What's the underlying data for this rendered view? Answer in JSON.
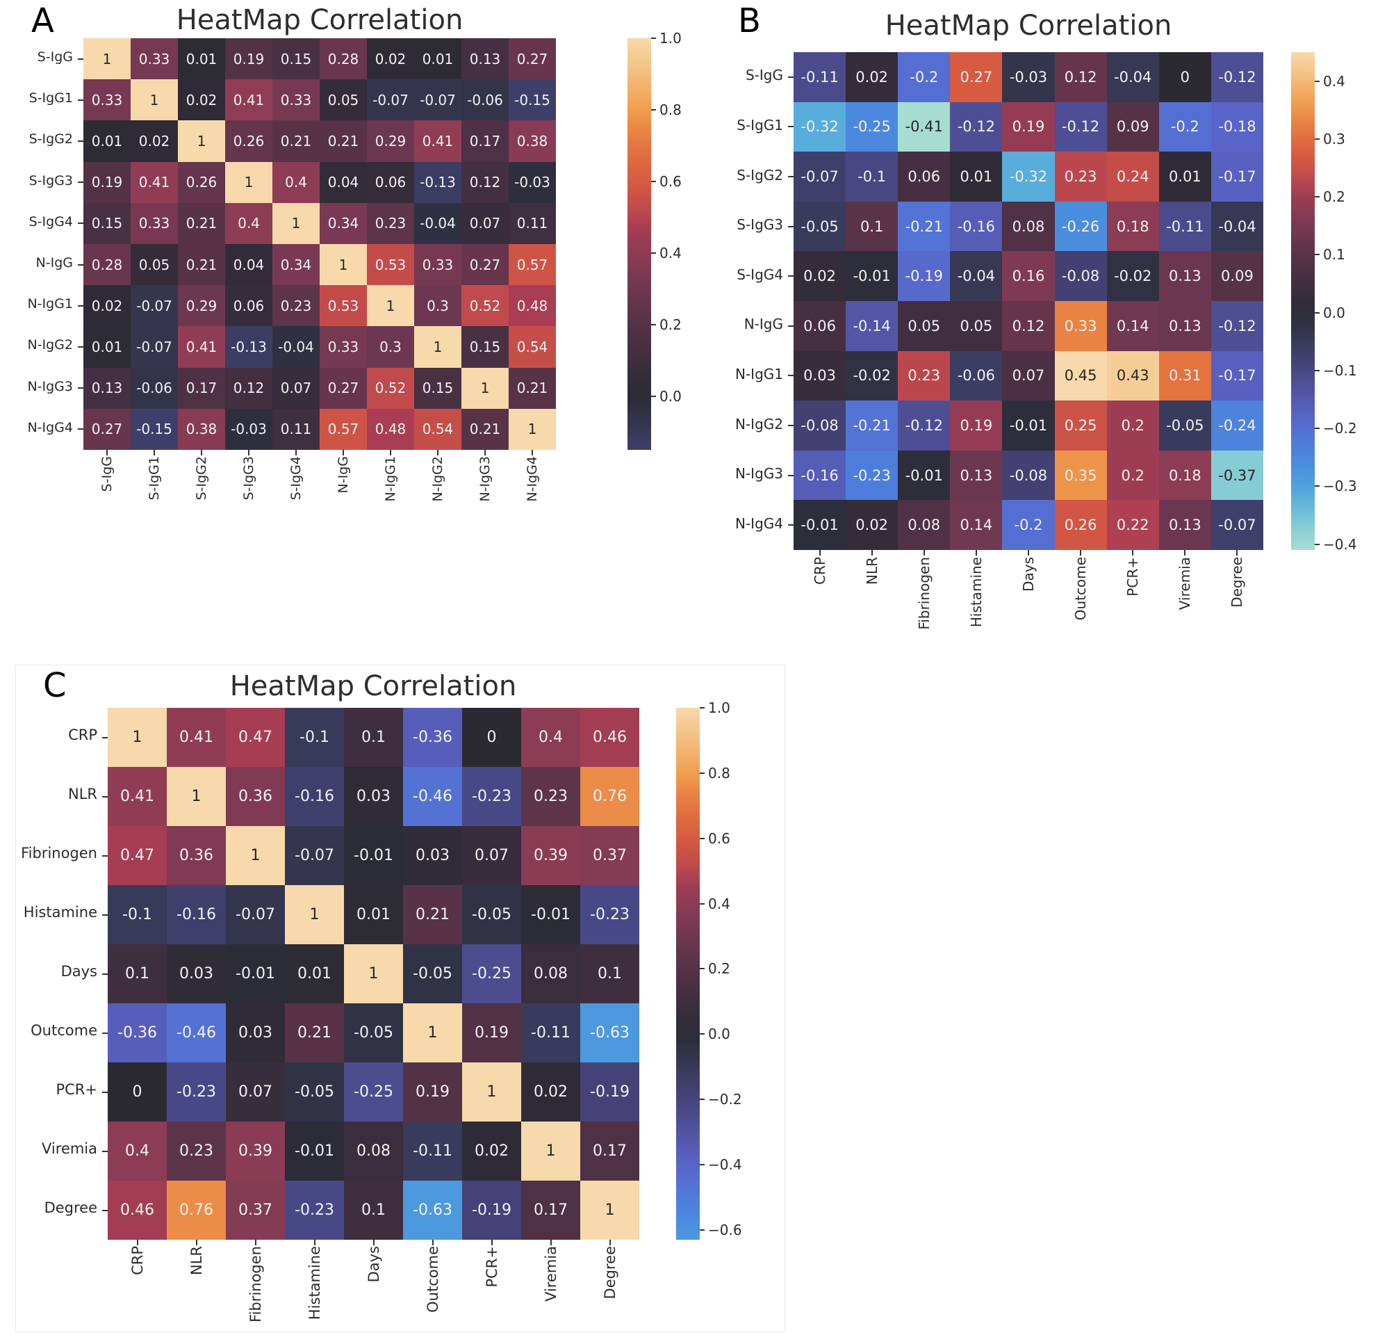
{
  "chart_data": [
    {
      "type": "heatmap",
      "panel": "A",
      "title": "HeatMap Correlation",
      "rows": [
        "S-IgG",
        "S-IgG1",
        "S-IgG2",
        "S-IgG3",
        "S-IgG4",
        "N-IgG",
        "N-IgG1",
        "N-IgG2",
        "N-IgG3",
        "N-IgG4"
      ],
      "cols": [
        "S-IgG",
        "S-IgG1",
        "S-IgG2",
        "S-IgG3",
        "S-IgG4",
        "N-IgG",
        "N-IgG1",
        "N-IgG2",
        "N-IgG3",
        "N-IgG4"
      ],
      "values": [
        [
          1,
          0.33,
          0.01,
          0.19,
          0.15,
          0.28,
          0.02,
          0.01,
          0.13,
          0.27
        ],
        [
          0.33,
          1,
          0.02,
          0.41,
          0.33,
          0.05,
          -0.07,
          -0.07,
          -0.06,
          -0.15
        ],
        [
          0.01,
          0.02,
          1,
          0.26,
          0.21,
          0.21,
          0.29,
          0.41,
          0.17,
          0.38
        ],
        [
          0.19,
          0.41,
          0.26,
          1,
          0.4,
          0.04,
          0.06,
          -0.13,
          0.12,
          -0.03
        ],
        [
          0.15,
          0.33,
          0.21,
          0.4,
          1,
          0.34,
          0.23,
          -0.04,
          0.07,
          0.11
        ],
        [
          0.28,
          0.05,
          0.21,
          0.04,
          0.34,
          1,
          0.53,
          0.33,
          0.27,
          0.57
        ],
        [
          0.02,
          -0.07,
          0.29,
          0.06,
          0.23,
          0.53,
          1,
          0.3,
          0.52,
          0.48
        ],
        [
          0.01,
          -0.07,
          0.41,
          -0.13,
          -0.04,
          0.33,
          0.3,
          1,
          0.15,
          0.54
        ],
        [
          0.13,
          -0.06,
          0.17,
          0.12,
          0.07,
          0.27,
          0.52,
          0.15,
          1,
          0.21
        ],
        [
          0.27,
          -0.15,
          0.38,
          -0.03,
          0.11,
          0.57,
          0.48,
          0.54,
          0.21,
          1
        ]
      ],
      "colormap": "icefire",
      "center": 0,
      "vmin": -0.15,
      "vmax": 1.0,
      "vrange": 1.0,
      "colorbar_ticks": [
        {
          "v": 1.0,
          "label": "1.0"
        },
        {
          "v": 0.8,
          "label": "0.8"
        },
        {
          "v": 0.6,
          "label": "0.6"
        },
        {
          "v": 0.4,
          "label": "0.4"
        },
        {
          "v": 0.2,
          "label": "0.2"
        },
        {
          "v": 0.0,
          "label": "0.0"
        }
      ]
    },
    {
      "type": "heatmap",
      "panel": "B",
      "title": "HeatMap Correlation",
      "rows": [
        "S-IgG",
        "S-IgG1",
        "S-IgG2",
        "S-IgG3",
        "S-IgG4",
        "N-IgG",
        "N-IgG1",
        "N-IgG2",
        "N-IgG3",
        "N-IgG4"
      ],
      "cols": [
        "CRP",
        "NLR",
        "Fibrinogen",
        "Histamine",
        "Days",
        "Outcome",
        "PCR+",
        "Viremia",
        "Degree"
      ],
      "values": [
        [
          -0.11,
          0.02,
          -0.2,
          0.27,
          -0.03,
          0.12,
          -0.04,
          0,
          -0.12
        ],
        [
          -0.32,
          -0.25,
          -0.41,
          -0.12,
          0.19,
          -0.12,
          0.09,
          -0.2,
          -0.18
        ],
        [
          -0.07,
          -0.1,
          0.06,
          0.01,
          -0.32,
          0.23,
          0.24,
          0.01,
          -0.17
        ],
        [
          -0.05,
          0.1,
          -0.21,
          -0.16,
          0.08,
          -0.26,
          0.18,
          -0.11,
          -0.04
        ],
        [
          0.02,
          -0.01,
          -0.19,
          -0.04,
          0.16,
          -0.08,
          -0.02,
          0.13,
          0.09
        ],
        [
          0.06,
          -0.14,
          0.05,
          0.05,
          0.12,
          0.33,
          0.14,
          0.13,
          -0.12
        ],
        [
          0.03,
          -0.02,
          0.23,
          -0.06,
          0.07,
          0.45,
          0.43,
          0.31,
          -0.17
        ],
        [
          -0.08,
          -0.21,
          -0.12,
          0.19,
          -0.01,
          0.25,
          0.2,
          -0.05,
          -0.24
        ],
        [
          -0.16,
          -0.23,
          -0.01,
          0.13,
          -0.08,
          0.35,
          0.2,
          0.18,
          -0.37
        ],
        [
          -0.01,
          0.02,
          0.08,
          0.14,
          -0.2,
          0.26,
          0.22,
          0.13,
          -0.07
        ]
      ],
      "colormap": "icefire",
      "center": 0,
      "vmin": -0.41,
      "vmax": 0.45,
      "vrange": 0.45,
      "colorbar_ticks": [
        {
          "v": 0.4,
          "label": "0.4"
        },
        {
          "v": 0.3,
          "label": "0.3"
        },
        {
          "v": 0.2,
          "label": "0.2"
        },
        {
          "v": 0.1,
          "label": "0.1"
        },
        {
          "v": 0.0,
          "label": "0.0"
        },
        {
          "v": -0.1,
          "label": "−0.1"
        },
        {
          "v": -0.2,
          "label": "−0.2"
        },
        {
          "v": -0.3,
          "label": "−0.3"
        },
        {
          "v": -0.4,
          "label": "−0.4"
        }
      ]
    },
    {
      "type": "heatmap",
      "panel": "C",
      "title": "HeatMap Correlation",
      "rows": [
        "CRP",
        "NLR",
        "Fibrinogen",
        "Histamine",
        "Days",
        "Outcome",
        "PCR+",
        "Viremia",
        "Degree"
      ],
      "cols": [
        "CRP",
        "NLR",
        "Fibrinogen",
        "Histamine",
        "Days",
        "Outcome",
        "PCR+",
        "Viremia",
        "Degree"
      ],
      "values": [
        [
          1,
          0.41,
          0.47,
          -0.1,
          0.1,
          -0.36,
          0,
          0.4,
          0.46
        ],
        [
          0.41,
          1,
          0.36,
          -0.16,
          0.03,
          -0.46,
          -0.23,
          0.23,
          0.76
        ],
        [
          0.47,
          0.36,
          1,
          -0.07,
          -0.01,
          0.03,
          0.07,
          0.39,
          0.37
        ],
        [
          -0.1,
          -0.16,
          -0.07,
          1,
          0.01,
          0.21,
          -0.05,
          -0.01,
          -0.23
        ],
        [
          0.1,
          0.03,
          -0.01,
          0.01,
          1,
          -0.05,
          -0.25,
          0.08,
          0.1
        ],
        [
          -0.36,
          -0.46,
          0.03,
          0.21,
          -0.05,
          1,
          0.19,
          -0.11,
          -0.63
        ],
        [
          0,
          -0.23,
          0.07,
          -0.05,
          -0.25,
          0.19,
          1,
          0.02,
          -0.19
        ],
        [
          0.4,
          0.23,
          0.39,
          -0.01,
          0.08,
          -0.11,
          0.02,
          1,
          0.17
        ],
        [
          0.46,
          0.76,
          0.37,
          -0.23,
          0.1,
          -0.63,
          -0.19,
          0.17,
          1
        ]
      ],
      "colormap": "icefire",
      "center": 0,
      "vmin": -0.63,
      "vmax": 1.0,
      "vrange": 1.0,
      "colorbar_ticks": [
        {
          "v": 1.0,
          "label": "1.0"
        },
        {
          "v": 0.8,
          "label": "0.8"
        },
        {
          "v": 0.6,
          "label": "0.6"
        },
        {
          "v": 0.4,
          "label": "0.4"
        },
        {
          "v": 0.2,
          "label": "0.2"
        },
        {
          "v": 0.0,
          "label": "0.0"
        },
        {
          "v": -0.2,
          "label": "−0.2"
        },
        {
          "v": -0.4,
          "label": "−0.4"
        },
        {
          "v": -0.6,
          "label": "−0.6"
        }
      ]
    }
  ],
  "colors": {
    "background": "#ffffff",
    "title_text": "#2e2e2e",
    "axis_text": "#2b2b2b",
    "annotation_dark": "#262626",
    "annotation_light": "#f2f2f2",
    "icefire_stops": [
      [
        0.0,
        "#b7e5d2"
      ],
      [
        0.05,
        "#a5dcd1"
      ],
      [
        0.1,
        "#7fc8d6"
      ],
      [
        0.15,
        "#53aadc"
      ],
      [
        0.2,
        "#4a92dd"
      ],
      [
        0.25,
        "#4f7bdc"
      ],
      [
        0.3,
        "#5a64c8"
      ],
      [
        0.35,
        "#5254a2"
      ],
      [
        0.4,
        "#45437a"
      ],
      [
        0.45,
        "#373a58"
      ],
      [
        0.48,
        "#2f3142"
      ],
      [
        0.5,
        "#2b2a33"
      ],
      [
        0.52,
        "#322c38"
      ],
      [
        0.55,
        "#3e2e40"
      ],
      [
        0.6,
        "#553246"
      ],
      [
        0.65,
        "#6e3751"
      ],
      [
        0.7,
        "#8d3c55"
      ],
      [
        0.74,
        "#a93d53"
      ],
      [
        0.76,
        "#c04a4c"
      ],
      [
        0.8,
        "#d75b40"
      ],
      [
        0.85,
        "#e4763f"
      ],
      [
        0.9,
        "#f09d4e"
      ],
      [
        0.95,
        "#f4bd7e"
      ],
      [
        1.0,
        "#f7d9ab"
      ]
    ]
  }
}
